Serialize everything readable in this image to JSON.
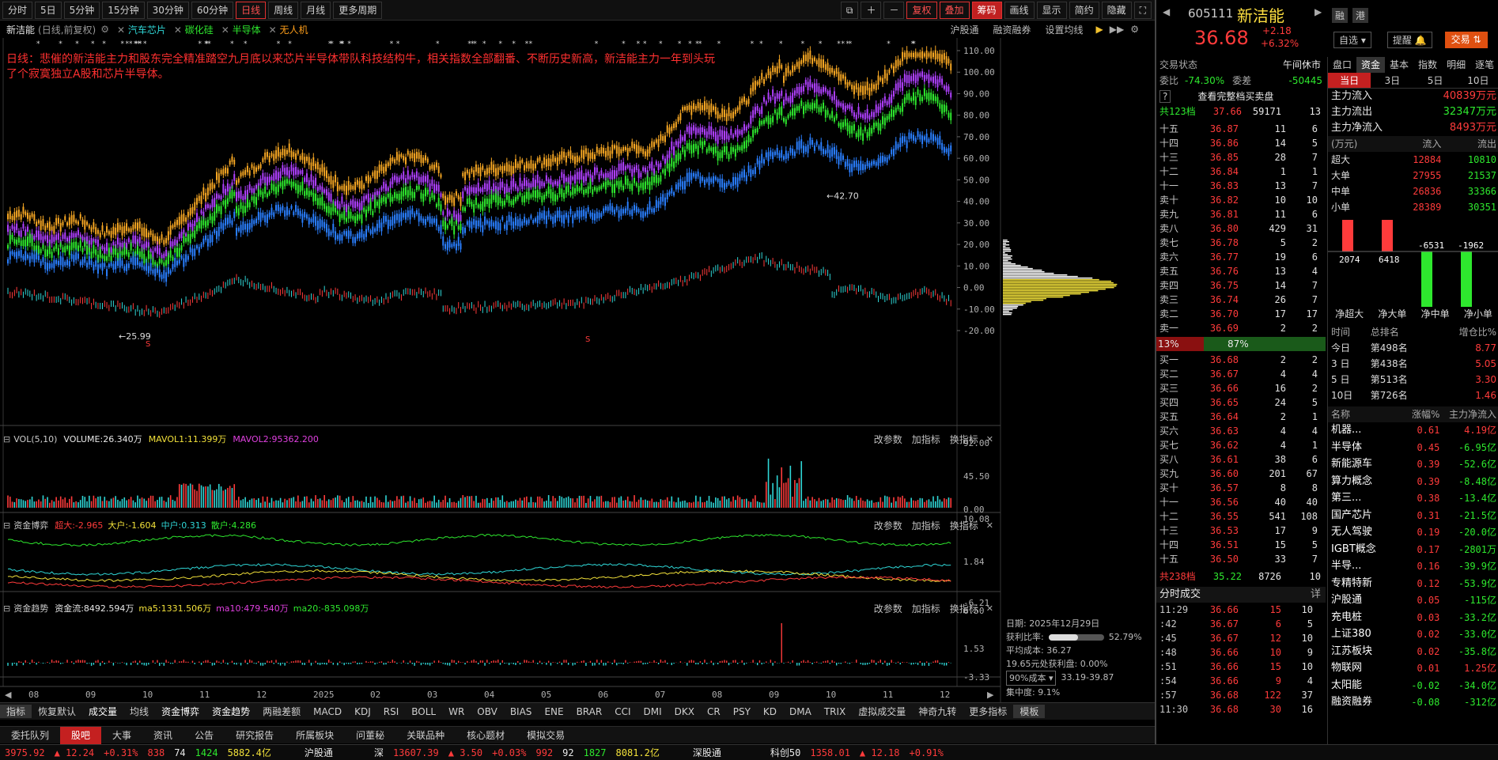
{
  "toolbar": {
    "periods": [
      "分时",
      "5日",
      "5分钟",
      "15分钟",
      "30分钟",
      "60分钟",
      "日线",
      "周线",
      "月线",
      "更多周期"
    ],
    "active": "日线",
    "right_buttons": [
      "复权",
      "叠加",
      "筹码",
      "画线",
      "显示",
      "简约",
      "隐藏"
    ]
  },
  "stock": {
    "name": "新洁能",
    "mode": "(日线,前复权)",
    "tags": [
      "汽车芯片",
      "碳化硅",
      "半导体",
      "无人机"
    ],
    "code": "605111",
    "price": "36.68",
    "change": "+2.18",
    "change_pct": "+6.32%"
  },
  "chart_links": [
    "沪股通",
    "融资融券",
    "设置均线"
  ],
  "annotation": "日线：悲催的新洁能主力和股东完全精准踏空九月底以来芯片半导体带队科技结构牛，相关指数全部翻番、不断历史新高，新洁能主力一年到头玩了个寂寞独立A股和芯片半导体。",
  "price_axis": [
    "110.00",
    "100.00",
    "90.00",
    "80.00",
    "70.00",
    "60.00",
    "50.00",
    "40.00",
    "30.00",
    "20.00",
    "10.00",
    "0.00",
    "-10.00",
    "-20.00"
  ],
  "markers": {
    "high": "42.70",
    "low": "25.99",
    "flag": "S"
  },
  "x_axis": [
    "08",
    "09",
    "10",
    "11",
    "12",
    "2025",
    "02",
    "03",
    "04",
    "05",
    "06",
    "07",
    "08",
    "09",
    "10",
    "11",
    "12"
  ],
  "vol_panel": {
    "title": "VOL(5,10)",
    "volume": "VOLUME:26.340万",
    "mavol1": "MAVOL1:11.399万",
    "mavol2": "MAVOL2:95362.200",
    "axis": [
      "92.00",
      "45.50",
      "0.00"
    ]
  },
  "fund_panel": {
    "title": "资金博弈",
    "super": "超大:-2.965",
    "large": "大户:-1.604",
    "mid": "中户:0.313",
    "retail": "散户:4.286",
    "axis": [
      "10.08",
      "1.84",
      "-6.21"
    ]
  },
  "trend_panel": {
    "title": "资金趋势",
    "flow": "资金流:8492.594万",
    "ma5": "ma5:1331.506万",
    "ma10": "ma10:479.540万",
    "ma20": "ma20:-835.098万",
    "axis": [
      "6.50",
      "1.53",
      "-3.33"
    ]
  },
  "panel_buttons": [
    "改参数",
    "加指标",
    "换指标"
  ],
  "cost_info": {
    "date": "日期: 2025年12月29日",
    "profit_label": "获利比率:",
    "profit": "52.79%",
    "avg": "平均成本: 36.27",
    "profit_at": "19.65元处获利盘: 0.00%",
    "range_sel": "90%成本",
    "range": "33.19-39.87",
    "conc": "集中度: 9.1%"
  },
  "indicator_tabs": [
    "指标",
    "恢复默认",
    "成交量",
    "均线",
    "资金博弈",
    "资金趋势",
    "两融差额",
    "MACD",
    "KDJ",
    "RSI",
    "BOLL",
    "WR",
    "OBV",
    "BIAS",
    "ENE",
    "BRAR",
    "CCI",
    "DMI",
    "DKX",
    "CR",
    "PSY",
    "KD",
    "DMA",
    "TRIX",
    "虚拟成交量",
    "神奇九转",
    "更多指标",
    "模板"
  ],
  "bottom_tabs": [
    "委托队列",
    "股吧",
    "大事",
    "资讯",
    "公告",
    "研究报告",
    "所属板块",
    "问董秘",
    "关联品种",
    "核心题材",
    "模拟交易"
  ],
  "bottom_sel": "股吧",
  "status": {
    "sh": "3975.92",
    "sh_chg": "▲ 12.24",
    "sh_pct": "+0.31%",
    "sh_cnt": "838",
    "sh_n": "74",
    "sh_up": "1424",
    "sh_amt": "5882.4亿",
    "hgt": "沪股通",
    "sz_lbl": "深",
    "sz": "13607.39",
    "sz_chg": "▲ 3.50",
    "sz_pct": "+0.03%",
    "sz_cnt": "992",
    "sz_n": "92",
    "sz_up": "1827",
    "sz_amt": "8081.2亿",
    "sgt": "深股通",
    "k50": "科创50",
    "k50v": "1358.01",
    "k50c": "▲ 12.18",
    "k50p": "+0.91%"
  },
  "right": {
    "tabs_top": [
      "融",
      "港"
    ],
    "btns": [
      "自选",
      "提醒",
      "交易"
    ],
    "trade_state_label": "交易状态",
    "trade_state": "午间休市",
    "wb_label": "委比",
    "wb": "-74.30%",
    "wc_label": "委差",
    "wc": "-50445",
    "full_ob": "查看完整档买卖盘",
    "sell_total": {
      "l": "共123档",
      "p": "37.66",
      "v": "59171",
      "n": "13"
    },
    "asks": [
      [
        "十五",
        "36.87",
        "11",
        "6"
      ],
      [
        "十四",
        "36.86",
        "14",
        "5"
      ],
      [
        "十三",
        "36.85",
        "28",
        "7"
      ],
      [
        "十二",
        "36.84",
        "1",
        "1"
      ],
      [
        "十一",
        "36.83",
        "13",
        "7"
      ],
      [
        "卖十",
        "36.82",
        "10",
        "10"
      ],
      [
        "卖九",
        "36.81",
        "11",
        "6"
      ],
      [
        "卖八",
        "36.80",
        "429",
        "31"
      ],
      [
        "卖七",
        "36.78",
        "5",
        "2"
      ],
      [
        "卖六",
        "36.77",
        "19",
        "6"
      ],
      [
        "卖五",
        "36.76",
        "13",
        "4"
      ],
      [
        "卖四",
        "36.75",
        "14",
        "7"
      ],
      [
        "卖三",
        "36.74",
        "26",
        "7"
      ],
      [
        "卖二",
        "36.70",
        "17",
        "17"
      ],
      [
        "卖一",
        "36.69",
        "2",
        "2"
      ]
    ],
    "ratio_l": "13%",
    "ratio_r": "87%",
    "bids": [
      [
        "买一",
        "36.68",
        "2",
        "2"
      ],
      [
        "买二",
        "36.67",
        "4",
        "4"
      ],
      [
        "买三",
        "36.66",
        "16",
        "2"
      ],
      [
        "买四",
        "36.65",
        "24",
        "5"
      ],
      [
        "买五",
        "36.64",
        "2",
        "1"
      ],
      [
        "买六",
        "36.63",
        "4",
        "4"
      ],
      [
        "买七",
        "36.62",
        "4",
        "1"
      ],
      [
        "买八",
        "36.61",
        "38",
        "6"
      ],
      [
        "买九",
        "36.60",
        "201",
        "67"
      ],
      [
        "买十",
        "36.57",
        "8",
        "8"
      ],
      [
        "十一",
        "36.56",
        "40",
        "40"
      ],
      [
        "十二",
        "36.55",
        "541",
        "108"
      ],
      [
        "十三",
        "36.53",
        "17",
        "9"
      ],
      [
        "十四",
        "36.51",
        "15",
        "5"
      ],
      [
        "十五",
        "36.50",
        "33",
        "7"
      ]
    ],
    "buy_total": {
      "l": "共238档",
      "p": "35.22",
      "v": "8726",
      "n": "10"
    },
    "ticks_title": "分时成交",
    "ticks_more": "详",
    "ticks": [
      [
        "11:29",
        "36.66",
        "15",
        "10"
      ],
      [
        ":42",
        "36.67",
        "6",
        "5"
      ],
      [
        ":45",
        "36.67",
        "12",
        "10"
      ],
      [
        ":48",
        "36.66",
        "10",
        "9"
      ],
      [
        ":51",
        "36.66",
        "15",
        "10"
      ],
      [
        ":54",
        "36.66",
        "9",
        "4"
      ],
      [
        ":57",
        "36.68",
        "122",
        "37"
      ],
      [
        "11:30",
        "36.68",
        "30",
        "16"
      ]
    ],
    "flow_tabs": [
      "盘口",
      "资金",
      "基本",
      "指数",
      "明细",
      "逐笔"
    ],
    "day_tabs": [
      "当日",
      "3日",
      "5日",
      "10日"
    ],
    "main_in": [
      "主力流入",
      "40839万元"
    ],
    "main_out": [
      "主力流出",
      "32347万元"
    ],
    "main_net": [
      "主力净流入",
      "8493万元"
    ],
    "flow_hdr": [
      "(万元)",
      "流入",
      "流出"
    ],
    "flow_rows": [
      [
        "超大",
        "12884",
        "10810"
      ],
      [
        "大单",
        "27955",
        "21537"
      ],
      [
        "中单",
        "26836",
        "33366"
      ],
      [
        "小单",
        "28389",
        "30351"
      ]
    ],
    "bars": [
      {
        "label": "净超大",
        "v": 2074
      },
      {
        "label": "净大单",
        "v": 6418
      },
      {
        "label": "净中单",
        "v": -6531
      },
      {
        "label": "净小单",
        "v": -1962
      }
    ],
    "rank_hdr": [
      "时间",
      "总排名",
      "增仓比%"
    ],
    "ranks": [
      [
        "今日",
        "第498名",
        "8.77"
      ],
      [
        "3 日",
        "第438名",
        "5.05"
      ],
      [
        "5 日",
        "第513名",
        "3.30"
      ],
      [
        "10日",
        "第726名",
        "1.46"
      ]
    ],
    "sector_hdr": [
      "名称",
      "涨幅%",
      "主力净流入"
    ],
    "sectors": [
      [
        "机器...",
        "0.61",
        "4.19亿"
      ],
      [
        "半导体",
        "0.45",
        "-6.95亿"
      ],
      [
        "新能源车",
        "0.39",
        "-52.6亿"
      ],
      [
        "算力概念",
        "0.39",
        "-8.48亿"
      ],
      [
        "第三...",
        "0.38",
        "-13.4亿"
      ],
      [
        "国产芯片",
        "0.31",
        "-21.5亿"
      ],
      [
        "无人驾驶",
        "0.19",
        "-20.0亿"
      ],
      [
        "IGBT概念",
        "0.17",
        "-2801万"
      ],
      [
        "半导...",
        "0.16",
        "-39.9亿"
      ],
      [
        "专精特新",
        "0.12",
        "-53.9亿"
      ],
      [
        "沪股通",
        "0.05",
        "-115亿"
      ],
      [
        "充电桩",
        "0.03",
        "-33.2亿"
      ],
      [
        "上证380",
        "0.02",
        "-33.0亿"
      ],
      [
        "江苏板块",
        "0.02",
        "-35.8亿"
      ],
      [
        "物联网",
        "0.01",
        "1.25亿"
      ],
      [
        "太阳能",
        "-0.02",
        "-34.0亿"
      ],
      [
        "融资融券",
        "-0.08",
        "-312亿"
      ]
    ]
  }
}
